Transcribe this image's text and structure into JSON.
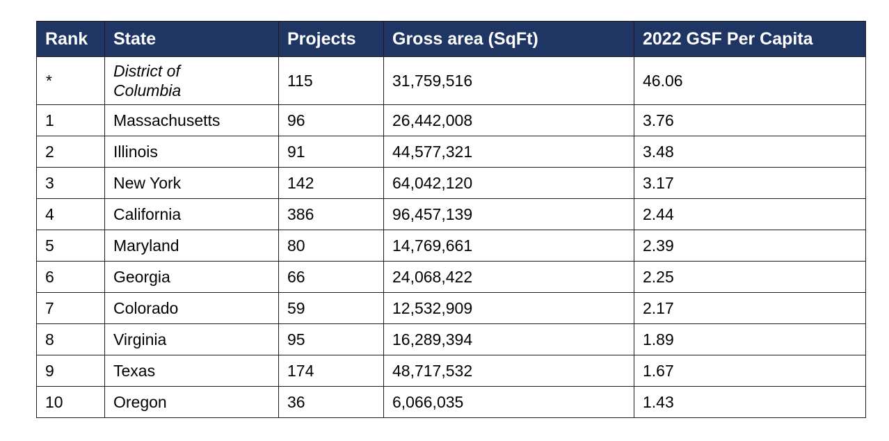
{
  "table": {
    "headers": [
      "Rank",
      "State",
      "Projects",
      "Gross area (SqFt)",
      "2022 GSF Per Capita"
    ],
    "header_color": "#1f3564",
    "rows": [
      {
        "rank": "*",
        "state_line1": "District of",
        "state_line2": "Columbia",
        "projects": "115",
        "gross_area": "31,759,516",
        "per_capita": "46.06",
        "italic": true
      },
      {
        "rank": "1",
        "state": "Massachusetts",
        "projects": "96",
        "gross_area": "26,442,008",
        "per_capita": "3.76"
      },
      {
        "rank": "2",
        "state": "Illinois",
        "projects": "91",
        "gross_area": "44,577,321",
        "per_capita": "3.48"
      },
      {
        "rank": "3",
        "state": "New York",
        "projects": "142",
        "gross_area": "64,042,120",
        "per_capita": "3.17"
      },
      {
        "rank": "4",
        "state": "California",
        "projects": "386",
        "gross_area": "96,457,139",
        "per_capita": "2.44"
      },
      {
        "rank": "5",
        "state": "Maryland",
        "projects": "80",
        "gross_area": "14,769,661",
        "per_capita": "2.39"
      },
      {
        "rank": "6",
        "state": "Georgia",
        "projects": "66",
        "gross_area": "24,068,422",
        "per_capita": "2.25"
      },
      {
        "rank": "7",
        "state": "Colorado",
        "projects": "59",
        "gross_area": "12,532,909",
        "per_capita": "2.17"
      },
      {
        "rank": "8",
        "state": "Virginia",
        "projects": "95",
        "gross_area": "16,289,394",
        "per_capita": "1.89"
      },
      {
        "rank": "9",
        "state": "Texas",
        "projects": "174",
        "gross_area": "48,717,532",
        "per_capita": "1.67"
      },
      {
        "rank": "10",
        "state": "Oregon",
        "projects": "36",
        "gross_area": "6,066,035",
        "per_capita": "1.43"
      }
    ]
  }
}
